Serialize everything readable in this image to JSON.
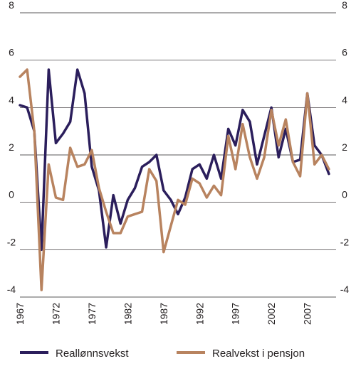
{
  "chart_data": {
    "type": "line",
    "title": "",
    "xlabel": "",
    "ylabel": "",
    "x": [
      1967,
      1968,
      1969,
      1970,
      1971,
      1972,
      1973,
      1974,
      1975,
      1976,
      1977,
      1978,
      1979,
      1980,
      1981,
      1982,
      1983,
      1984,
      1985,
      1986,
      1987,
      1988,
      1989,
      1990,
      1991,
      1992,
      1993,
      1994,
      1995,
      1996,
      1997,
      1998,
      1999,
      2000,
      2001,
      2002,
      2003,
      2004,
      2005,
      2006,
      2007,
      2008,
      2009,
      2010
    ],
    "series": [
      {
        "name": "Reallønnsvekst",
        "color": "#2b1e5c",
        "values": [
          4.1,
          4.0,
          3.0,
          -2.0,
          5.6,
          2.5,
          2.9,
          3.4,
          5.6,
          4.6,
          1.5,
          0.5,
          -1.9,
          0.3,
          -0.9,
          0.1,
          0.6,
          1.5,
          1.7,
          2.0,
          0.5,
          0.1,
          -0.5,
          0.2,
          1.4,
          1.6,
          1.0,
          2.0,
          1.0,
          3.1,
          2.4,
          3.9,
          3.4,
          1.6,
          2.8,
          4.0,
          1.9,
          3.1,
          1.7,
          1.8,
          4.6,
          2.4,
          2.0,
          1.2
        ]
      },
      {
        "name": "Realvekst i pensjon",
        "color": "#b8835f",
        "values": [
          5.3,
          5.6,
          3.0,
          -3.7,
          1.6,
          0.2,
          0.1,
          2.3,
          1.5,
          1.6,
          2.2,
          0.6,
          -0.4,
          -1.3,
          -1.3,
          -0.6,
          -0.5,
          -0.4,
          1.4,
          0.9,
          -2.1,
          -1.0,
          0.1,
          -0.1,
          1.0,
          0.8,
          0.2,
          0.7,
          0.3,
          2.8,
          1.4,
          3.3,
          1.9,
          1.0,
          1.9,
          3.9,
          2.4,
          3.5,
          1.7,
          1.1,
          4.6,
          1.6,
          2.0,
          1.4
        ]
      }
    ],
    "ylim": [
      -4,
      8
    ],
    "xlim": [
      1967,
      2011
    ],
    "x_ticks": [
      "1967",
      "1972",
      "1977",
      "1982",
      "1987",
      "1992",
      "1997",
      "2002",
      "2007"
    ],
    "y_ticks": [
      "8",
      "6",
      "4",
      "2",
      "0",
      "-2",
      "-4"
    ],
    "grid": "horizontal",
    "legend_position": "bottom"
  }
}
